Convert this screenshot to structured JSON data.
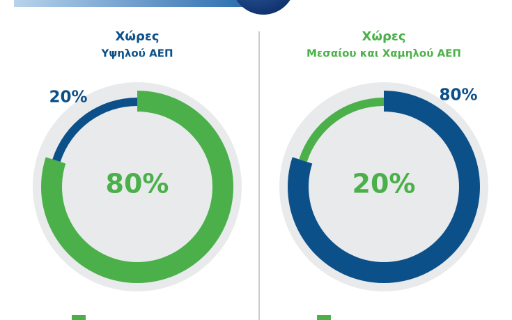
{
  "chart_data": [
    {
      "type": "donut",
      "title": "Χώρες",
      "subtitle": "Υψηλού ΑΕΠ",
      "title_color": "#0c5089",
      "values": [
        80,
        20
      ],
      "value_labels": [
        "80%",
        "20%"
      ],
      "colors": [
        "#4bb04a",
        "#0c5089"
      ]
    },
    {
      "type": "donut",
      "title": "Χώρες",
      "subtitle": "Μεσαίου και Χαμηλού ΑΕΠ",
      "title_color": "#4bb04a",
      "values": [
        80,
        20
      ],
      "value_labels": [
        "80%",
        "20%"
      ],
      "colors": [
        "#0c5089",
        "#4bb04a"
      ]
    }
  ]
}
